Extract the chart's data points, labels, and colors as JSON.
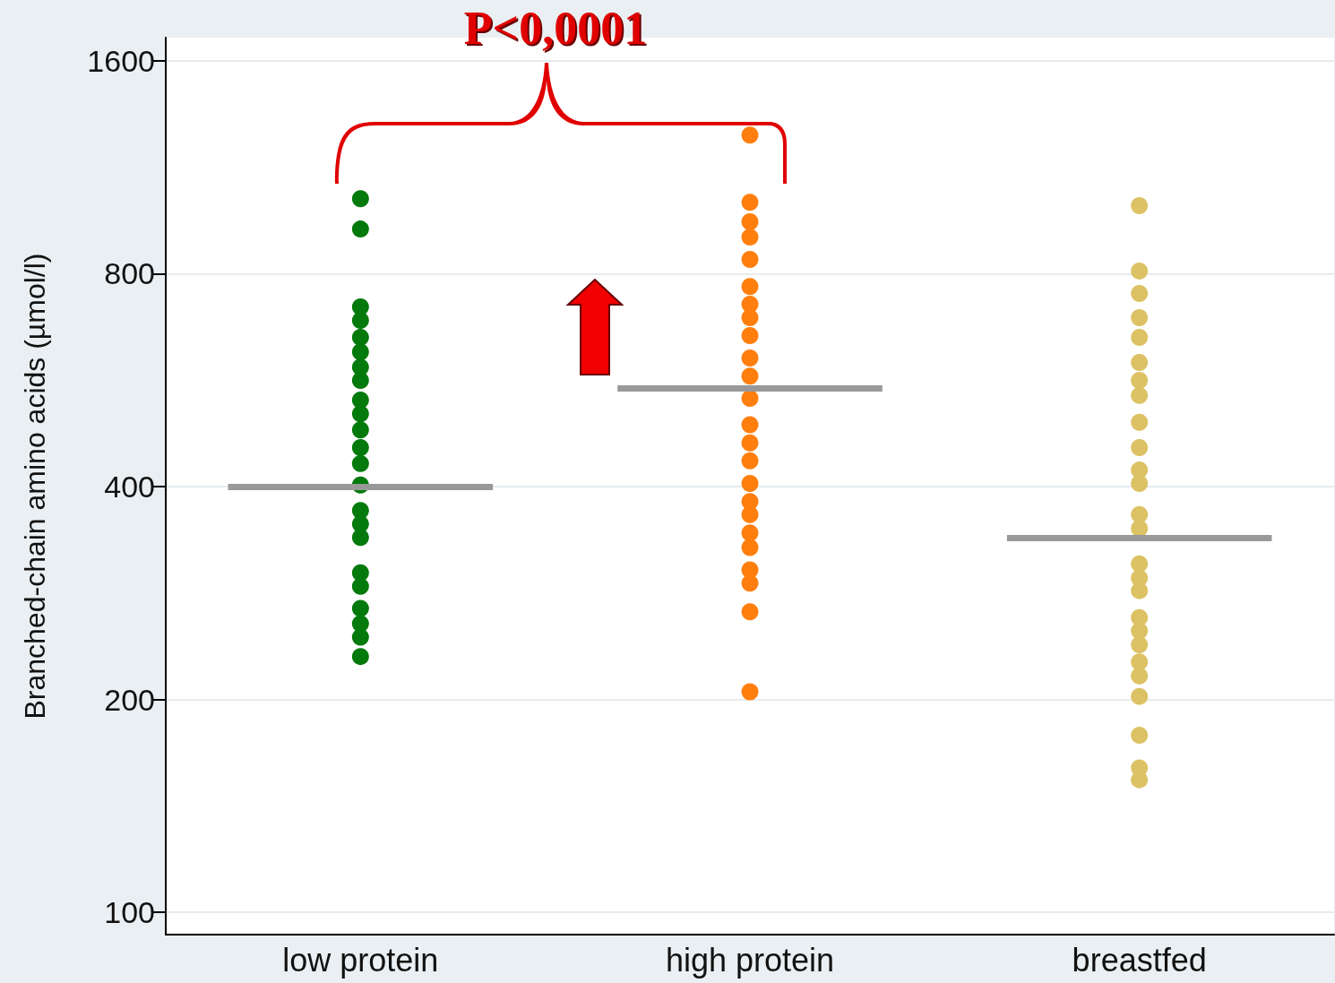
{
  "chart_data": {
    "type": "scatter",
    "ylabel": "Branched-chain amino acids (µmol/l)",
    "categories": [
      "low protein",
      "high protein",
      "breastfed"
    ],
    "log": "y",
    "ylim": [
      93,
      1725
    ],
    "yticks": [
      100,
      200,
      400,
      800,
      1600
    ],
    "grid": "y",
    "marker": "circle",
    "annotations": [
      "P<0,0001"
    ],
    "ref_lines": [
      {
        "axis": "y",
        "value": 400,
        "color": "#999999"
      },
      {
        "axis": "y",
        "value": 551,
        "color": "#999999"
      },
      {
        "axis": "y",
        "value": 338,
        "color": "#999999"
      }
    ],
    "series": [
      {
        "color": "#037a0b",
        "x": [
          "low protein",
          "low protein",
          "low protein",
          "low protein",
          "low protein",
          "low protein",
          "low protein",
          "low protein",
          "low protein",
          "low protein",
          "low protein",
          "low protein",
          "low protein",
          "low protein",
          "low protein",
          "low protein",
          "low protein",
          "low protein",
          "low protein",
          "low protein",
          "low protein",
          "low protein",
          "low protein"
        ],
        "values": [
          1021,
          925,
          718,
          687,
          650,
          620,
          590,
          565,
          530,
          507,
          481,
          454,
          431,
          402,
          370,
          354,
          339,
          302,
          289,
          269,
          256,
          245,
          230
        ]
      },
      {
        "color": "#ff7f0e",
        "x": [
          "high protein",
          "high protein",
          "high protein",
          "high protein",
          "high protein",
          "high protein",
          "high protein",
          "high protein",
          "high protein",
          "high protein",
          "high protein",
          "high protein",
          "high protein",
          "high protein",
          "high protein",
          "high protein",
          "high protein",
          "high protein",
          "high protein",
          "high protein",
          "high protein",
          "high protein",
          "high protein",
          "high protein"
        ],
        "values": [
          1256,
          1009,
          947,
          901,
          838,
          767,
          724,
          693,
          654,
          608,
          573,
          533,
          489,
          461,
          435,
          404,
          381,
          365,
          344,
          328,
          305,
          292,
          266,
          205
        ]
      },
      {
        "color": "#dcc264",
        "x": [
          "breastfed",
          "breastfed",
          "breastfed",
          "breastfed",
          "breastfed",
          "breastfed",
          "breastfed",
          "breastfed",
          "breastfed",
          "breastfed",
          "breastfed",
          "breastfed",
          "breastfed",
          "breastfed",
          "breastfed",
          "breastfed",
          "breastfed",
          "breastfed",
          "breastfed",
          "breastfed",
          "breastfed",
          "breastfed",
          "breastfed",
          "breastfed",
          "breastfed",
          "breastfed"
        ],
        "values": [
          998,
          807,
          750,
          693,
          650,
          599,
          565,
          538,
          493,
          454,
          422,
          404,
          365,
          349,
          311,
          297,
          285,
          261,
          250,
          239,
          226,
          216,
          202,
          178,
          160,
          154
        ]
      }
    ]
  }
}
